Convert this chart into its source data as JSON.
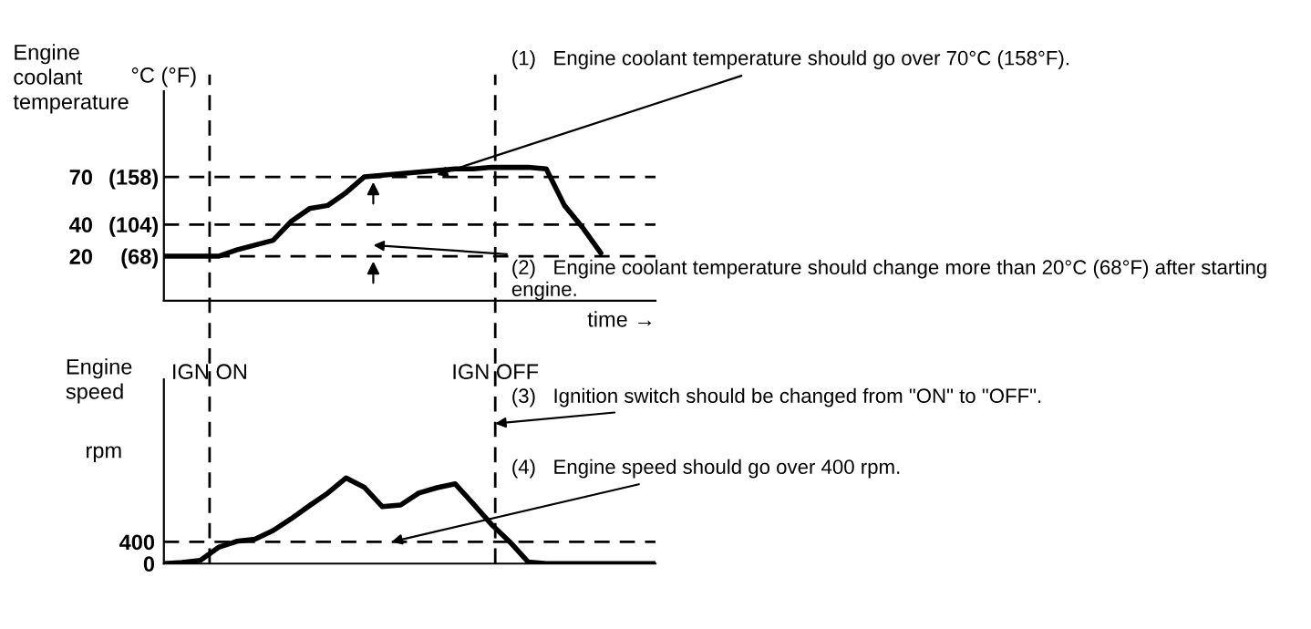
{
  "chart_data": [
    {
      "type": "line",
      "xlabel": "time →",
      "ylabel": "Engine coolant temperature",
      "tick_labels": "y",
      "grid": false,
      "legend": false,
      "categories": [
        null,
        null,
        null,
        null,
        null,
        null,
        null,
        null,
        null,
        null,
        null,
        null,
        null,
        null,
        null,
        null,
        null,
        null,
        null,
        null,
        null,
        null,
        null,
        null,
        null,
        null,
        null,
        null
      ],
      "series": [
        {
          "color": "#000000",
          "values": [
            20,
            20,
            20,
            20,
            24,
            27,
            30,
            42,
            50,
            52,
            60,
            70,
            71,
            72,
            73,
            74,
            75,
            75,
            76,
            76,
            76,
            75,
            52,
            38,
            22,
            null,
            null,
            null
          ]
        }
      ],
      "ylim": [
        -8,
        124
      ],
      "yticks": [
        20,
        40,
        70
      ],
      "y2lim": [
        17.6,
        255.2
      ],
      "y2ticks": [
        {
          "value": 68,
          "label": "(68)"
        },
        {
          "value": 104,
          "label": "(104)"
        },
        {
          "value": 158,
          "label": "(158)"
        }
      ],
      "ref_lines": [
        {
          "axis": "y",
          "value": 70,
          "line_style": "dashed",
          "color": "#000000"
        },
        {
          "axis": "y",
          "value": 40,
          "line_style": "dashed",
          "color": "#000000"
        },
        {
          "axis": "y",
          "value": 20,
          "line_style": "dashed",
          "color": "#000000"
        }
      ],
      "annotations": [
        "°C (°F)",
        "(1)   Engine coolant temperature should go over 70°C (158°F).",
        "(2)   Engine coolant temperature should change more than 20°C (68°F) after starting engine.",
        "IGN ON",
        "IGN OFF"
      ]
    },
    {
      "type": "line",
      "ylabel": "Engine speed",
      "tick_labels": "y",
      "grid": false,
      "legend": false,
      "categories": [
        null,
        null,
        null,
        null,
        null,
        null,
        null,
        null,
        null,
        null,
        null,
        null,
        null,
        null,
        null,
        null,
        null,
        null,
        null,
        null,
        null,
        null,
        null,
        null,
        null,
        null,
        null,
        null
      ],
      "series": [
        {
          "color": "#000000",
          "values": [
            0,
            20,
            60,
            300,
            410,
            450,
            610,
            830,
            1070,
            1300,
            1580,
            1410,
            1050,
            1080,
            1300,
            1400,
            1470,
            1100,
            720,
            400,
            30,
            0,
            0,
            0,
            0,
            0,
            0,
            0
          ]
        }
      ],
      "ylim": [
        0,
        3400
      ],
      "yticks": [
        0,
        400
      ],
      "ref_lines": [
        {
          "axis": "y",
          "value": 400,
          "line_style": "dashed",
          "color": "#000000"
        }
      ],
      "annotations": [
        "rpm",
        "(3)   Ignition switch should be changed from \"ON\" to \"OFF\".",
        "(4)   Engine speed should go over 400 rpm."
      ]
    }
  ]
}
